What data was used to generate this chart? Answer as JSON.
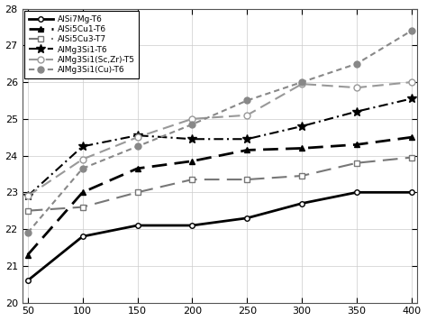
{
  "x": [
    50,
    100,
    150,
    200,
    250,
    300,
    350,
    400
  ],
  "series": [
    {
      "label": "AlSi7Mg-T6",
      "y": [
        20.6,
        21.8,
        22.1,
        22.1,
        22.3,
        22.7,
        23.0,
        23.0
      ],
      "color": "#000000",
      "marker": "o",
      "markerfacecolor": "white",
      "markersize": 4,
      "linewidth": 2.0,
      "dashes": []
    },
    {
      "label": "AlSi5Cu1-T6",
      "y": [
        21.3,
        23.0,
        23.65,
        23.85,
        24.15,
        24.2,
        24.3,
        24.5
      ],
      "color": "#000000",
      "marker": "^",
      "markerfacecolor": "#000000",
      "markersize": 5,
      "linewidth": 2.0,
      "dashes": [
        6,
        3
      ]
    },
    {
      "label": "AlSi5Cu3-T7",
      "y": [
        22.5,
        22.6,
        23.0,
        23.35,
        23.35,
        23.45,
        23.8,
        23.95
      ],
      "color": "#777777",
      "marker": "s",
      "markerfacecolor": "white",
      "markersize": 4,
      "linewidth": 1.5,
      "dashes": [
        8,
        4
      ]
    },
    {
      "label": "AlMg3Si1-T6",
      "y": [
        22.9,
        24.25,
        24.55,
        24.45,
        24.45,
        24.8,
        25.2,
        25.55
      ],
      "color": "#000000",
      "marker": "*",
      "markerfacecolor": "#000000",
      "markersize": 7,
      "linewidth": 1.5,
      "dashes": [
        5,
        2,
        1,
        2
      ]
    },
    {
      "label": "AlMg3Si1(Sc,Zr)-T5",
      "y": [
        22.9,
        23.9,
        24.5,
        25.0,
        25.1,
        25.95,
        25.85,
        26.0
      ],
      "color": "#999999",
      "marker": "o",
      "markerfacecolor": "white",
      "markersize": 5,
      "linewidth": 1.5,
      "dashes": [
        6,
        3
      ]
    },
    {
      "label": "AlMg3Si1(Cu)-T6",
      "y": [
        21.9,
        23.65,
        24.25,
        24.85,
        25.5,
        26.0,
        26.5,
        27.4
      ],
      "color": "#888888",
      "marker": "o",
      "markerfacecolor": "#888888",
      "markersize": 5,
      "linewidth": 1.5,
      "dashes": [
        3,
        2
      ]
    }
  ],
  "xlim": [
    45,
    405
  ],
  "ylim": [
    20,
    28
  ],
  "xticks": [
    50,
    100,
    150,
    200,
    250,
    300,
    350,
    400
  ],
  "yticks": [
    20,
    21,
    22,
    23,
    24,
    25,
    26,
    27,
    28
  ],
  "grid": true,
  "legend_loc": "upper left",
  "background_color": "#ffffff"
}
